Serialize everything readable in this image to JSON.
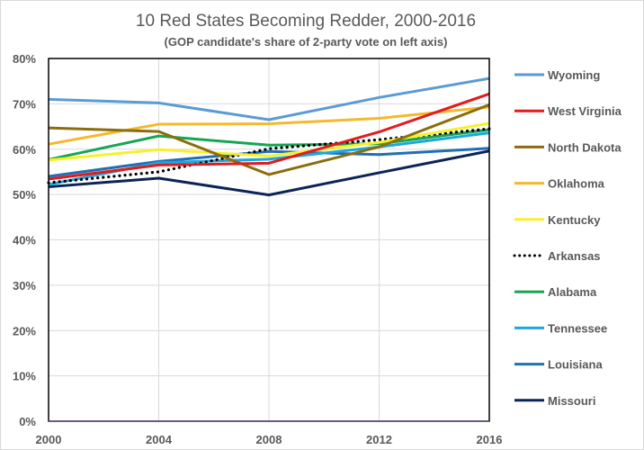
{
  "chart_data": {
    "type": "line",
    "title": "10 Red States Becoming Redder, 2000-2016",
    "subtitle": "(GOP candidate's share of 2-party vote on left axis)",
    "xlabel": "",
    "ylabel": "",
    "x": [
      "2000",
      "2004",
      "2008",
      "2012",
      "2016"
    ],
    "ylim": [
      0,
      80
    ],
    "yticks": [
      0,
      10,
      20,
      30,
      40,
      50,
      60,
      70,
      80
    ],
    "ytick_labels": [
      "0%",
      "10%",
      "20%",
      "30%",
      "40%",
      "50%",
      "60%",
      "70%",
      "80%"
    ],
    "grid": "on",
    "legend_position": "right",
    "series": [
      {
        "name": "Wyoming",
        "color": "#5b9bd5",
        "dash": "solid",
        "values": [
          71.0,
          70.2,
          66.5,
          71.4,
          75.6
        ]
      },
      {
        "name": "West Virginia",
        "color": "#e31a1c",
        "dash": "solid",
        "values": [
          53.4,
          56.5,
          56.9,
          63.8,
          72.2
        ]
      },
      {
        "name": "North Dakota",
        "color": "#8c6d0c",
        "dash": "solid",
        "values": [
          64.7,
          63.9,
          54.4,
          60.5,
          69.8
        ]
      },
      {
        "name": "Oklahoma",
        "color": "#f5b82e",
        "dash": "solid",
        "values": [
          61.1,
          65.5,
          65.6,
          66.8,
          69.3
        ]
      },
      {
        "name": "Kentucky",
        "color": "#f7f12a",
        "dash": "solid",
        "values": [
          57.6,
          59.9,
          58.5,
          61.5,
          65.7
        ]
      },
      {
        "name": "Arkansas",
        "color": "#000000",
        "dash": "dotted",
        "values": [
          52.6,
          55.0,
          60.1,
          62.1,
          64.5
        ]
      },
      {
        "name": "Alabama",
        "color": "#16a651",
        "dash": "solid",
        "values": [
          57.7,
          62.9,
          60.9,
          61.2,
          64.3
        ]
      },
      {
        "name": "Tennessee",
        "color": "#1ba8e0",
        "dash": "solid",
        "values": [
          52.2,
          57.0,
          57.8,
          60.5,
          63.6
        ]
      },
      {
        "name": "Louisiana",
        "color": "#1f6fb5",
        "dash": "solid",
        "values": [
          54.0,
          57.3,
          59.5,
          58.8,
          60.2
        ]
      },
      {
        "name": "Missouri",
        "color": "#0b2457",
        "dash": "solid",
        "values": [
          51.7,
          53.6,
          49.9,
          54.8,
          59.6
        ]
      }
    ]
  }
}
